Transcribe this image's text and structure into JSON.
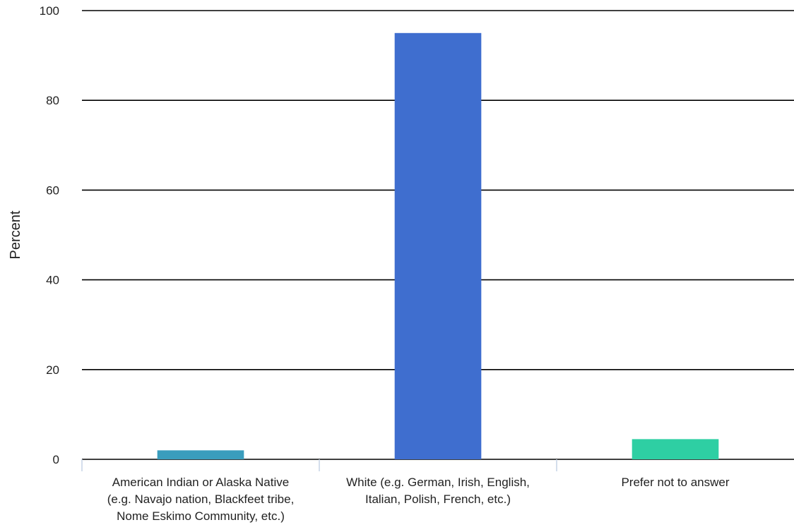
{
  "chart_data": {
    "type": "bar",
    "title": "",
    "xlabel": "",
    "ylabel": "Percent",
    "ylim": [
      0,
      100
    ],
    "yticks": [
      0,
      20,
      40,
      60,
      80,
      100
    ],
    "grid": true,
    "categories": [
      [
        "American Indian or Alaska Native",
        "(e.g. Navajo nation, Blackfeet tribe,",
        "Nome Eskimo Community, etc.)"
      ],
      [
        "White (e.g. German, Irish, English,",
        "Italian, Polish, French, etc.)"
      ],
      [
        "Prefer not to answer"
      ]
    ],
    "values": [
      2,
      95,
      4.5
    ],
    "colors": [
      "#3a9dbd",
      "#3f6ecf",
      "#2ecfa3"
    ]
  }
}
